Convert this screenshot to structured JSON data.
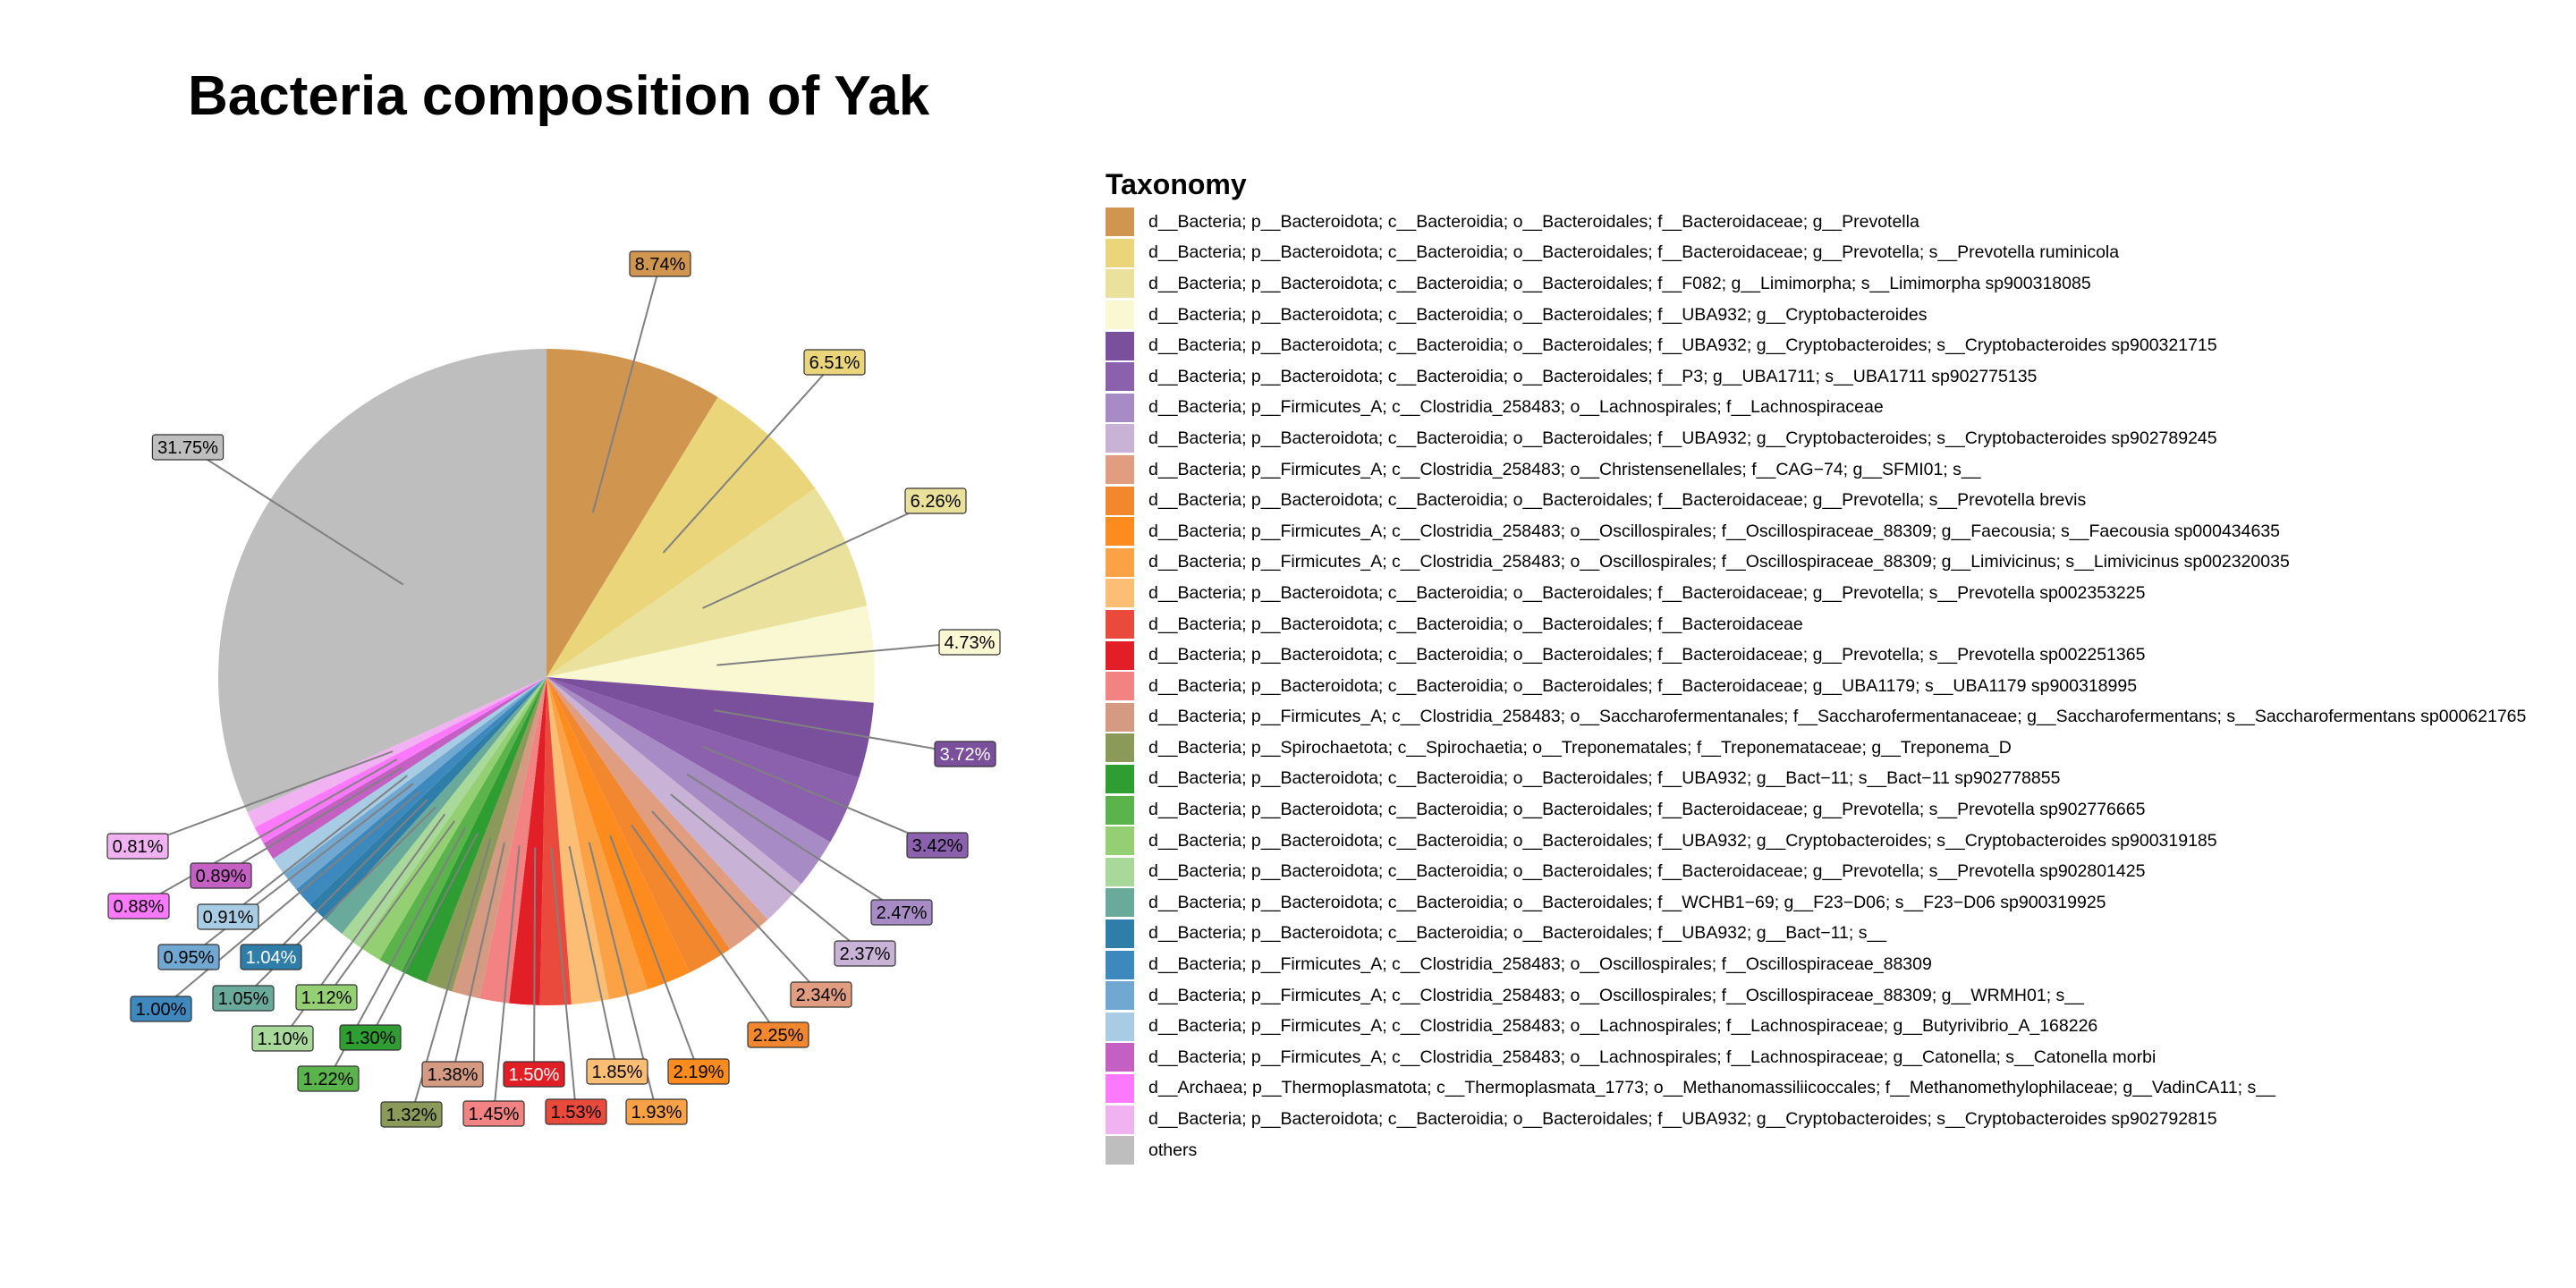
{
  "chart_data": {
    "type": "pie",
    "title": "Bacteria composition of Yak",
    "legend_title": "Taxonomy",
    "legend_placement": "right",
    "slices": [
      {
        "label": "d__Bacteria; p__Bacteroidota; c__Bacteroidia; o__Bacteroidales; f__Bacteroidaceae; g__Prevotella",
        "value": 8.74,
        "value_label": "8.74%",
        "color": "#D0954F"
      },
      {
        "label": "d__Bacteria; p__Bacteroidota; c__Bacteroidia; o__Bacteroidales; f__Bacteroidaceae; g__Prevotella; s__Prevotella ruminicola",
        "value": 6.51,
        "value_label": "6.51%",
        "color": "#EAD57A"
      },
      {
        "label": "d__Bacteria; p__Bacteroidota; c__Bacteroidia; o__Bacteroidales; f__F082; g__Limimorpha; s__Limimorpha sp900318085",
        "value": 6.26,
        "value_label": "6.26%",
        "color": "#EAE29C"
      },
      {
        "label": "d__Bacteria; p__Bacteroidota; c__Bacteroidia; o__Bacteroidales; f__UBA932; g__Cryptobacteroides",
        "value": 4.73,
        "value_label": "4.73%",
        "color": "#FAF8D2"
      },
      {
        "label": "d__Bacteria; p__Bacteroidota; c__Bacteroidia; o__Bacteroidales; f__UBA932; g__Cryptobacteroides; s__Cryptobacteroides sp900321715",
        "value": 3.72,
        "value_label": "3.72%",
        "color": "#7A4F9B"
      },
      {
        "label": "d__Bacteria; p__Bacteroidota; c__Bacteroidia; o__Bacteroidales; f__P3; g__UBA1711; s__UBA1711 sp902775135",
        "value": 3.42,
        "value_label": "3.42%",
        "color": "#8B61AE"
      },
      {
        "label": "d__Bacteria; p__Firmicutes_A; c__Clostridia_258483; o__Lachnospirales; f__Lachnospiraceae",
        "value": 2.47,
        "value_label": "2.47%",
        "color": "#A78BC4"
      },
      {
        "label": "d__Bacteria; p__Bacteroidota; c__Bacteroidia; o__Bacteroidales; f__UBA932; g__Cryptobacteroides; s__Cryptobacteroides sp902789245",
        "value": 2.37,
        "value_label": "2.37%",
        "color": "#C8B3D6"
      },
      {
        "label": "d__Bacteria; p__Firmicutes_A; c__Clostridia_258483; o__Christensenellales; f__CAG−74; g__SFMI01; s__",
        "value": 2.34,
        "value_label": "2.34%",
        "color": "#E09D80"
      },
      {
        "label": "d__Bacteria; p__Bacteroidota; c__Bacteroidia; o__Bacteroidales; f__Bacteroidaceae; g__Prevotella; s__Prevotella brevis",
        "value": 2.25,
        "value_label": "2.25%",
        "color": "#F2872E"
      },
      {
        "label": "d__Bacteria; p__Firmicutes_A; c__Clostridia_258483; o__Oscillospirales; f__Oscillospiraceae_88309; g__Faecousia; s__Faecousia sp000434635",
        "value": 2.19,
        "value_label": "2.19%",
        "color": "#FE8B1E"
      },
      {
        "label": "d__Bacteria; p__Firmicutes_A; c__Clostridia_258483; o__Oscillospirales; f__Oscillospiraceae_88309; g__Limivicinus; s__Limivicinus sp002320035",
        "value": 1.93,
        "value_label": "1.93%",
        "color": "#FBA146"
      },
      {
        "label": "d__Bacteria; p__Bacteroidota; c__Bacteroidia; o__Bacteroidales; f__Bacteroidaceae; g__Prevotella; s__Prevotella sp002353225",
        "value": 1.85,
        "value_label": "1.85%",
        "color": "#FCBE75"
      },
      {
        "label": "d__Bacteria; p__Bacteroidota; c__Bacteroidia; o__Bacteroidales; f__Bacteroidaceae",
        "value": 1.53,
        "value_label": "1.53%",
        "color": "#EA4A3B"
      },
      {
        "label": "d__Bacteria; p__Bacteroidota; c__Bacteroidia; o__Bacteroidales; f__Bacteroidaceae; g__Prevotella; s__Prevotella sp002251365",
        "value": 1.5,
        "value_label": "1.50%",
        "color": "#E21F26"
      },
      {
        "label": "d__Bacteria; p__Bacteroidota; c__Bacteroidia; o__Bacteroidales; f__Bacteroidaceae; g__UBA1179; s__UBA1179 sp900318995",
        "value": 1.45,
        "value_label": "1.45%",
        "color": "#F38383"
      },
      {
        "label": "d__Bacteria; p__Firmicutes_A; c__Clostridia_258483; o__Saccharofermentanales; f__Saccharofermentanaceae; g__Saccharofermentans; s__Saccharofermentans sp000621765",
        "value": 1.38,
        "value_label": "1.38%",
        "color": "#D49A82"
      },
      {
        "label": "d__Bacteria; p__Spirochaetota; c__Spirochaetia; o__Treponematales; f__Treponemataceae; g__Treponema_D",
        "value": 1.32,
        "value_label": "1.32%",
        "color": "#8B9A58"
      },
      {
        "label": "d__Bacteria; p__Bacteroidota; c__Bacteroidia; o__Bacteroidales; f__UBA932; g__Bact−11; s__Bact−11 sp902778855",
        "value": 1.3,
        "value_label": "1.30%",
        "color": "#2E9D32"
      },
      {
        "label": "d__Bacteria; p__Bacteroidota; c__Bacteroidia; o__Bacteroidales; f__Bacteroidaceae; g__Prevotella; s__Prevotella sp902776665",
        "value": 1.22,
        "value_label": "1.22%",
        "color": "#5BB34C"
      },
      {
        "label": "d__Bacteria; p__Bacteroidota; c__Bacteroidia; o__Bacteroidales; f__UBA932; g__Cryptobacteroides; s__Cryptobacteroides sp900319185",
        "value": 1.12,
        "value_label": "1.12%",
        "color": "#95CF74"
      },
      {
        "label": "d__Bacteria; p__Bacteroidota; c__Bacteroidia; o__Bacteroidales; f__Bacteroidaceae; g__Prevotella; s__Prevotella sp902801425",
        "value": 1.1,
        "value_label": "1.10%",
        "color": "#A9D99A"
      },
      {
        "label": "d__Bacteria; p__Bacteroidota; c__Bacteroidia; o__Bacteroidales; f__WCHB1−69; g__F23−D06; s__F23−D06 sp900319925",
        "value": 1.05,
        "value_label": "1.05%",
        "color": "#6AAA9B"
      },
      {
        "label": "d__Bacteria; p__Bacteroidota; c__Bacteroidia; o__Bacteroidales; f__UBA932; g__Bact−11; s__",
        "value": 1.04,
        "value_label": "1.04%",
        "color": "#2F7EAA"
      },
      {
        "label": "d__Bacteria; p__Firmicutes_A; c__Clostridia_258483; o__Oscillospirales; f__Oscillospiraceae_88309",
        "value": 1.0,
        "value_label": "1.00%",
        "color": "#3D89BE"
      },
      {
        "label": "d__Bacteria; p__Firmicutes_A; c__Clostridia_258483; o__Oscillospirales; f__Oscillospiraceae_88309; g__WRMH01; s__",
        "value": 0.95,
        "value_label": "0.95%",
        "color": "#71A8D2"
      },
      {
        "label": "d__Bacteria; p__Firmicutes_A; c__Clostridia_258483; o__Lachnospirales; f__Lachnospiraceae; g__Butyrivibrio_A_168226",
        "value": 0.91,
        "value_label": "0.91%",
        "color": "#A7CCE3"
      },
      {
        "label": "d__Bacteria; p__Firmicutes_A; c__Clostridia_258483; o__Lachnospirales; f__Lachnospiraceae; g__Catonella; s__Catonella morbi",
        "value": 0.89,
        "value_label": "0.89%",
        "color": "#C460C4"
      },
      {
        "label": "d__Archaea; p__Thermoplasmatota; c__Thermoplasmata_1773; o__Methanomassiliicoccales; f__Methanomethylophilaceae; g__VadinCA11; s__",
        "value": 0.88,
        "value_label": "0.88%",
        "color": "#FC78FC"
      },
      {
        "label": "d__Bacteria; p__Bacteroidota; c__Bacteroidia; o__Bacteroidales; f__UBA932; g__Cryptobacteroides; s__Cryptobacteroides sp902792815",
        "value": 0.81,
        "value_label": "0.81%",
        "color": "#F0B2F0"
      },
      {
        "label": "others",
        "value": 31.75,
        "value_label": "31.75%",
        "color": "#BEBEBE"
      }
    ]
  }
}
